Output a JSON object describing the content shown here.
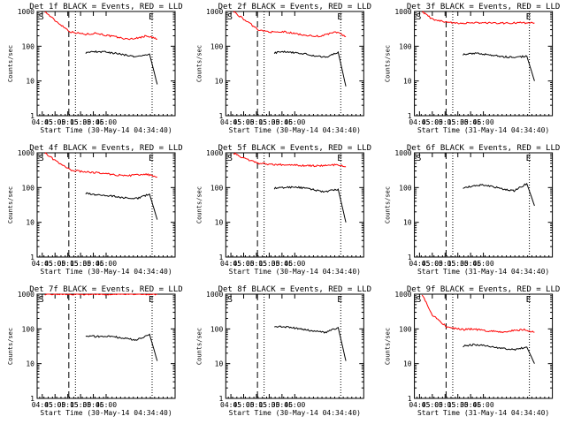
{
  "chart_data": [
    {
      "type": "line",
      "title": "Det 1f BLACK = Events, RED = LLD",
      "xlabel": "Start Time (30-May-14 04:34:40)",
      "ylabel": "Counts/sec",
      "xticks": [
        "04:45",
        "05:00",
        "05:15",
        "05:30",
        "05:45",
        "06:00"
      ],
      "yticks": [
        "1",
        "10",
        "100",
        "1000"
      ],
      "y_scale": "log",
      "ylim": [
        1,
        1000
      ],
      "markers": [
        "S",
        "E"
      ],
      "series": [
        {
          "color": "#ff0000",
          "x": [
            4.8,
            5.0,
            5.3,
            5.6,
            5.8,
            6.0,
            6.2,
            6.4,
            6.6,
            6.8,
            7.0
          ],
          "values": [
            1000,
            550,
            260,
            220,
            240,
            205,
            185,
            160,
            170,
            200,
            160
          ]
        },
        {
          "color": "#000000",
          "x": [
            5.6,
            5.8,
            6.0,
            6.2,
            6.4,
            6.6,
            6.85,
            7.0
          ],
          "values": [
            65,
            70,
            68,
            62,
            55,
            50,
            60,
            8
          ]
        }
      ]
    },
    {
      "type": "line",
      "title": "Det 2f BLACK = Events, RED = LLD",
      "xlabel": "Start Time (30-May-14 04:34:40)",
      "ylabel": "Counts/sec",
      "xticks": [
        "04:45",
        "05:00",
        "05:15",
        "05:30",
        "05:45",
        "06:00"
      ],
      "yticks": [
        "1",
        "10",
        "100",
        "1000"
      ],
      "y_scale": "log",
      "ylim": [
        1,
        1000
      ],
      "markers": [
        "S",
        "E"
      ],
      "series": [
        {
          "color": "#ff0000",
          "x": [
            4.8,
            5.0,
            5.3,
            5.6,
            5.8,
            6.0,
            6.2,
            6.4,
            6.6,
            6.8,
            7.0
          ],
          "values": [
            1000,
            600,
            290,
            250,
            260,
            230,
            210,
            190,
            210,
            260,
            190
          ]
        },
        {
          "color": "#000000",
          "x": [
            5.6,
            5.8,
            6.0,
            6.2,
            6.4,
            6.6,
            6.85,
            7.0
          ],
          "values": [
            65,
            70,
            66,
            60,
            52,
            48,
            68,
            7
          ]
        }
      ]
    },
    {
      "type": "line",
      "title": "Det 3f BLACK = Events, RED = LLD",
      "xlabel": "Start Time (31-May-14 04:34:40)",
      "ylabel": "Counts/sec",
      "xticks": [
        "04:45",
        "05:00",
        "05:15",
        "05:30",
        "05:45",
        "06:00"
      ],
      "yticks": [
        "1",
        "10",
        "100",
        "1000"
      ],
      "y_scale": "log",
      "ylim": [
        1,
        1000
      ],
      "markers": [
        "S",
        "E"
      ],
      "series": [
        {
          "color": "#ff0000",
          "x": [
            4.8,
            5.0,
            5.3,
            5.6,
            5.8,
            6.0,
            6.2,
            6.4,
            6.6,
            6.8,
            7.0
          ],
          "values": [
            1000,
            600,
            480,
            460,
            470,
            470,
            470,
            460,
            470,
            470,
            470
          ]
        },
        {
          "color": "#000000",
          "x": [
            5.6,
            5.8,
            6.0,
            6.2,
            6.4,
            6.6,
            6.85,
            7.0
          ],
          "values": [
            58,
            62,
            60,
            55,
            50,
            48,
            52,
            10
          ]
        }
      ]
    },
    {
      "type": "line",
      "title": "Det 4f BLACK = Events, RED = LLD",
      "xlabel": "Start Time (30-May-14 04:34:40)",
      "ylabel": "Counts/sec",
      "xticks": [
        "04:45",
        "05:00",
        "05:15",
        "05:30",
        "05:45",
        "06:00"
      ],
      "yticks": [
        "1",
        "10",
        "100",
        "1000"
      ],
      "y_scale": "log",
      "ylim": [
        1,
        1000
      ],
      "markers": [
        "S",
        "E"
      ],
      "series": [
        {
          "color": "#ff0000",
          "x": [
            4.8,
            5.0,
            5.3,
            5.6,
            5.8,
            6.0,
            6.2,
            6.4,
            6.6,
            6.8,
            7.0
          ],
          "values": [
            1000,
            600,
            320,
            280,
            270,
            250,
            230,
            220,
            230,
            240,
            200
          ]
        },
        {
          "color": "#000000",
          "x": [
            5.6,
            5.8,
            6.0,
            6.2,
            6.4,
            6.6,
            6.85,
            7.0
          ],
          "values": [
            68,
            62,
            60,
            55,
            50,
            48,
            65,
            12
          ]
        }
      ]
    },
    {
      "type": "line",
      "title": "Det 5f BLACK = Events, RED = LLD",
      "xlabel": "Start Time (30-May-14 04:34:40)",
      "ylabel": "Counts/sec",
      "xticks": [
        "04:45",
        "05:00",
        "05:15",
        "05:30",
        "05:45",
        "06:00"
      ],
      "yticks": [
        "1",
        "10",
        "100",
        "1000"
      ],
      "y_scale": "log",
      "ylim": [
        1,
        1000
      ],
      "markers": [
        "S",
        "E"
      ],
      "series": [
        {
          "color": "#ff0000",
          "x": [
            4.8,
            5.0,
            5.3,
            5.6,
            5.8,
            6.0,
            6.2,
            6.4,
            6.6,
            6.8,
            7.0
          ],
          "values": [
            1000,
            700,
            500,
            460,
            450,
            440,
            430,
            420,
            430,
            450,
            400
          ]
        },
        {
          "color": "#000000",
          "x": [
            5.6,
            5.8,
            6.0,
            6.2,
            6.4,
            6.6,
            6.85,
            7.0
          ],
          "values": [
            95,
            100,
            105,
            95,
            85,
            75,
            90,
            10
          ]
        }
      ]
    },
    {
      "type": "line",
      "title": "Det 6f BLACK = Events, RED = LLD",
      "xlabel": "Start Time (31-May-14 04:34:40)",
      "ylabel": "Counts/sec",
      "xticks": [
        "04:45",
        "05:00",
        "05:15",
        "05:30",
        "05:45",
        "06:00"
      ],
      "yticks": [
        "1",
        "10",
        "100",
        "1000"
      ],
      "y_scale": "log",
      "ylim": [
        1,
        1000
      ],
      "markers": [
        "S",
        "E"
      ],
      "series": [
        {
          "color": "#000000",
          "x": [
            5.6,
            5.8,
            6.0,
            6.2,
            6.4,
            6.6,
            6.85,
            7.0
          ],
          "values": [
            100,
            110,
            120,
            105,
            90,
            80,
            130,
            30
          ]
        }
      ]
    },
    {
      "type": "line",
      "title": "Det 7f BLACK = Events, RED = LLD",
      "xlabel": "Start Time (30-May-14 04:34:40)",
      "ylabel": "Counts/sec",
      "xticks": [
        "04:45",
        "05:00",
        "05:15",
        "05:30",
        "05:45",
        "06:00"
      ],
      "yticks": [
        "1",
        "10",
        "100",
        "1000"
      ],
      "y_scale": "log",
      "ylim": [
        1,
        1000
      ],
      "markers": [
        "S",
        "E"
      ],
      "series": [
        {
          "color": "#ff0000",
          "x": [
            4.8,
            5.0,
            5.3,
            5.6,
            5.8,
            6.0,
            6.2,
            6.4,
            6.6,
            6.8,
            7.0
          ],
          "values": [
            1000,
            1000,
            1000,
            1000,
            1000,
            1000,
            1000,
            1000,
            1000,
            1000,
            1000
          ]
        },
        {
          "color": "#000000",
          "x": [
            5.6,
            5.8,
            6.0,
            6.2,
            6.4,
            6.6,
            6.85,
            7.0
          ],
          "values": [
            65,
            60,
            62,
            58,
            52,
            48,
            70,
            12
          ]
        }
      ]
    },
    {
      "type": "line",
      "title": "Det 8f BLACK = Events, RED = LLD",
      "xlabel": "Start Time (30-May-14 04:34:40)",
      "ylabel": "Counts/sec",
      "xticks": [
        "04:45",
        "05:00",
        "05:15",
        "05:30",
        "05:45",
        "06:00"
      ],
      "yticks": [
        "1",
        "10",
        "100",
        "1000"
      ],
      "y_scale": "log",
      "ylim": [
        1,
        1000
      ],
      "markers": [
        "S",
        "E"
      ],
      "series": [
        {
          "color": "#000000",
          "x": [
            5.6,
            5.8,
            6.0,
            6.2,
            6.4,
            6.6,
            6.85,
            7.0
          ],
          "values": [
            120,
            115,
            105,
            95,
            85,
            80,
            110,
            12
          ]
        }
      ]
    },
    {
      "type": "line",
      "title": "Det 9f BLACK = Events, RED = LLD",
      "xlabel": "Start Time (31-May-14 04:34:40)",
      "ylabel": "Counts/sec",
      "xticks": [
        "04:45",
        "05:00",
        "05:15",
        "05:30",
        "05:45",
        "06:00"
      ],
      "yticks": [
        "1",
        "10",
        "100",
        "1000"
      ],
      "y_scale": "log",
      "ylim": [
        1,
        1000
      ],
      "markers": [
        "S",
        "E"
      ],
      "series": [
        {
          "color": "#ff0000",
          "x": [
            4.8,
            5.0,
            5.3,
            5.6,
            5.8,
            6.0,
            6.2,
            6.4,
            6.6,
            6.8,
            7.0
          ],
          "values": [
            1000,
            250,
            110,
            95,
            100,
            90,
            85,
            80,
            90,
            95,
            80
          ]
        },
        {
          "color": "#000000",
          "x": [
            5.6,
            5.8,
            6.0,
            6.2,
            6.4,
            6.6,
            6.85,
            7.0
          ],
          "values": [
            32,
            35,
            33,
            30,
            27,
            25,
            30,
            10
          ]
        }
      ]
    }
  ]
}
